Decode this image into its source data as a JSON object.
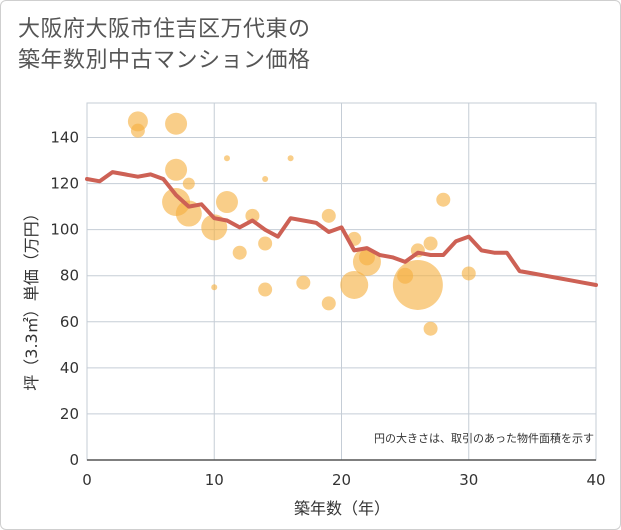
{
  "chart_data": {
    "type": "scatter",
    "title_lines": [
      "大阪府大阪市住吉区万代東の",
      "築年数別中古マンション価格"
    ],
    "xlabel": "築年数（年）",
    "ylabel": "坪（3.3㎡）単価（万円）",
    "xlim": [
      0,
      40
    ],
    "ylim": [
      0,
      155
    ],
    "x_ticks": [
      0,
      10,
      20,
      30,
      40
    ],
    "y_ticks": [
      0,
      20,
      40,
      60,
      80,
      100,
      120,
      140
    ],
    "grid": true,
    "note": "円の大きさは、取引のあった物件面積を示す",
    "colors": {
      "bubble": "#f5b041",
      "line": "#cd6155",
      "grid": "#c5cdd6"
    },
    "bubbles": [
      {
        "x": 4,
        "y": 147,
        "s": 10
      },
      {
        "x": 4,
        "y": 143,
        "s": 7
      },
      {
        "x": 7,
        "y": 146,
        "s": 11
      },
      {
        "x": 7,
        "y": 126,
        "s": 11
      },
      {
        "x": 7,
        "y": 112,
        "s": 14
      },
      {
        "x": 8,
        "y": 120,
        "s": 6
      },
      {
        "x": 8,
        "y": 107,
        "s": 13
      },
      {
        "x": 10,
        "y": 101,
        "s": 13
      },
      {
        "x": 10,
        "y": 75,
        "s": 3
      },
      {
        "x": 11,
        "y": 131,
        "s": 3
      },
      {
        "x": 11,
        "y": 112,
        "s": 11
      },
      {
        "x": 12,
        "y": 90,
        "s": 7
      },
      {
        "x": 13,
        "y": 106,
        "s": 7
      },
      {
        "x": 14,
        "y": 122,
        "s": 3
      },
      {
        "x": 14,
        "y": 94,
        "s": 7
      },
      {
        "x": 14,
        "y": 74,
        "s": 7
      },
      {
        "x": 16,
        "y": 131,
        "s": 3
      },
      {
        "x": 17,
        "y": 77,
        "s": 7
      },
      {
        "x": 19,
        "y": 106,
        "s": 7
      },
      {
        "x": 19,
        "y": 68,
        "s": 7
      },
      {
        "x": 21,
        "y": 96,
        "s": 7
      },
      {
        "x": 21,
        "y": 76,
        "s": 14
      },
      {
        "x": 22,
        "y": 88,
        "s": 8
      },
      {
        "x": 22,
        "y": 86,
        "s": 14
      },
      {
        "x": 25,
        "y": 80,
        "s": 8
      },
      {
        "x": 26,
        "y": 91,
        "s": 7
      },
      {
        "x": 26,
        "y": 76,
        "s": 25
      },
      {
        "x": 27,
        "y": 94,
        "s": 7
      },
      {
        "x": 27,
        "y": 57,
        "s": 7
      },
      {
        "x": 28,
        "y": 113,
        "s": 7
      },
      {
        "x": 30,
        "y": 81,
        "s": 7
      }
    ],
    "line": {
      "x": [
        0,
        1,
        2,
        3,
        4,
        5,
        6,
        7,
        8,
        9,
        10,
        11,
        12,
        13,
        14,
        15,
        16,
        17,
        18,
        19,
        20,
        21,
        22,
        23,
        24,
        25,
        26,
        27,
        28,
        29,
        30,
        31,
        32,
        33,
        34,
        35,
        36,
        37,
        38,
        39,
        40
      ],
      "y": [
        122,
        121,
        125,
        124,
        123,
        124,
        122,
        115,
        110,
        111,
        105,
        104,
        101,
        104,
        100,
        97,
        105,
        104,
        103,
        99,
        101,
        91,
        92,
        89,
        88,
        86,
        90,
        89,
        89,
        95,
        97,
        91,
        90,
        90,
        82,
        81,
        80,
        79,
        78,
        77,
        76
      ]
    }
  }
}
